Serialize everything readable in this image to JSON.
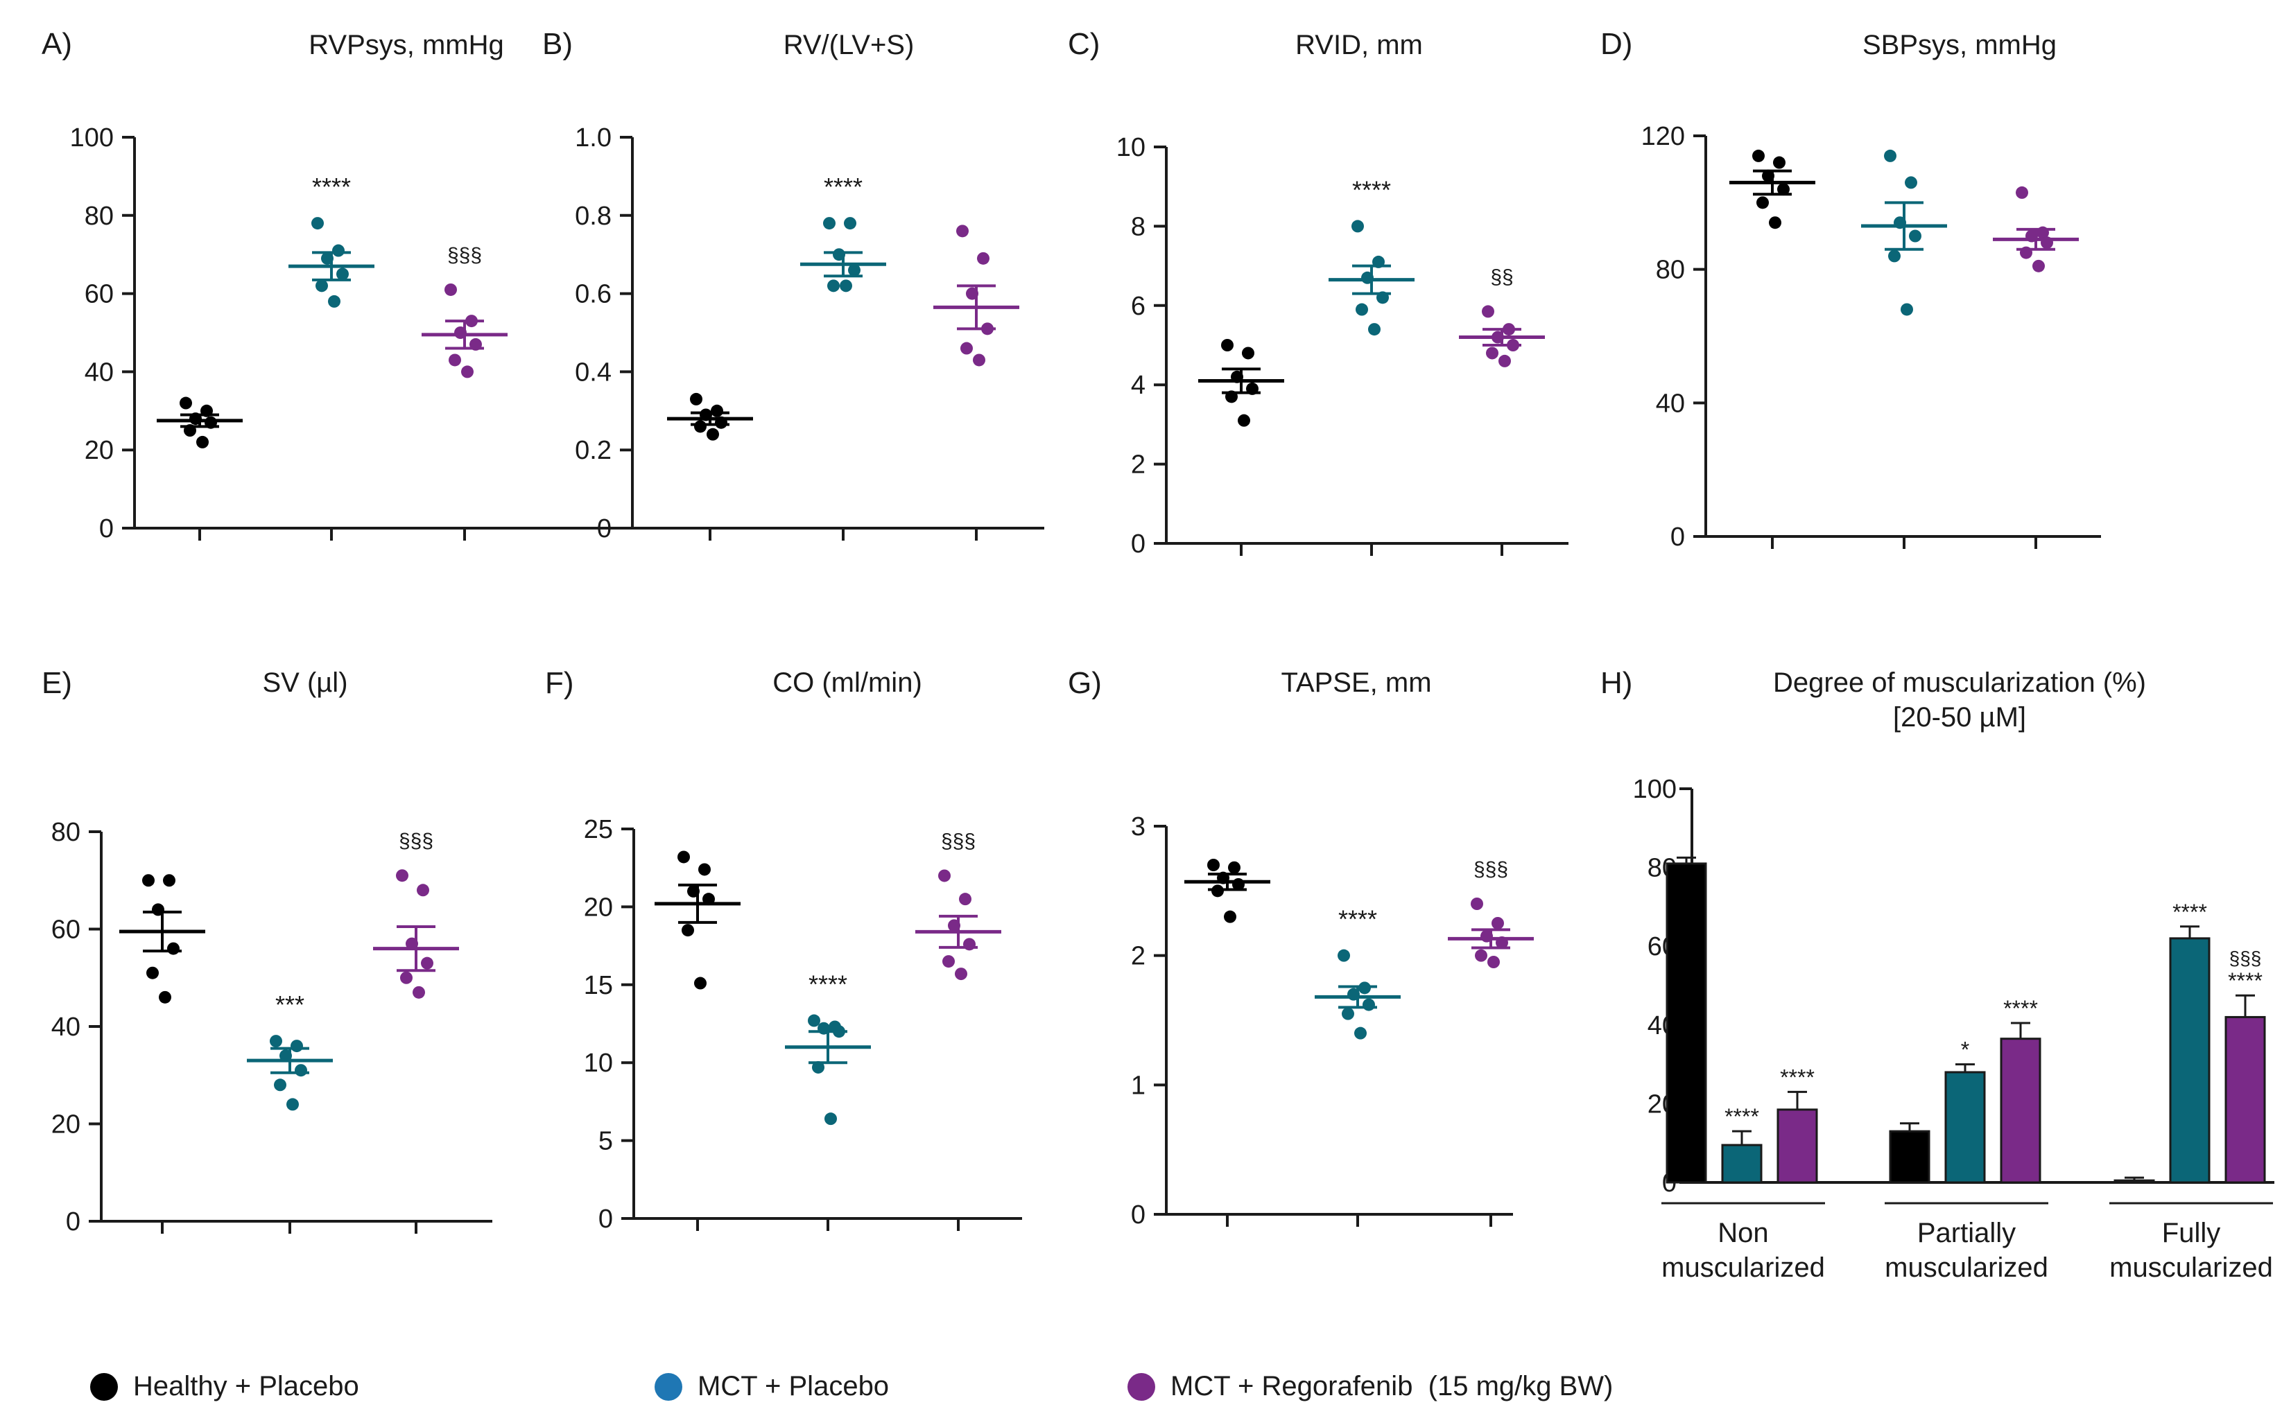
{
  "colors": {
    "healthy": "#000000",
    "mct_placebo": "#0b6677",
    "mct_rego": "#7a2a88"
  },
  "legend": [
    {
      "label": "Healthy + Placebo",
      "color": "#000000",
      "legend_dot": "#000000"
    },
    {
      "label": "MCT + Placebo",
      "color": "#0b6677",
      "legend_dot": "#1f77b4"
    },
    {
      "label": "MCT + Regorafenib  (15 mg/kg BW)",
      "color": "#7a2a88",
      "legend_dot": "#7a2a88"
    }
  ],
  "chart_data": [
    {
      "id": "A",
      "panel_label": "A)",
      "title": "RVPsys, mmHg",
      "type": "scatter",
      "ylim": [
        0,
        100
      ],
      "yticks": [
        0,
        20,
        40,
        60,
        80,
        100
      ],
      "tick_labels": [
        "0",
        "20",
        "40",
        "60",
        "80",
        "100"
      ],
      "groups": [
        {
          "name": "Healthy + Placebo",
          "mean": 27.5,
          "sem": 1.5,
          "points": [
            32,
            30,
            28,
            27,
            25,
            22
          ],
          "annotation": ""
        },
        {
          "name": "MCT + Placebo",
          "mean": 67,
          "sem": 3.5,
          "points": [
            78,
            71,
            69,
            65,
            62,
            58
          ],
          "annotation": "****"
        },
        {
          "name": "MCT + Regorafenib",
          "mean": 49.5,
          "sem": 3.5,
          "points": [
            61,
            53,
            50,
            47,
            43,
            40
          ],
          "annotation": "§§§"
        }
      ]
    },
    {
      "id": "B",
      "panel_label": "B)",
      "title": "RV/(LV+S)",
      "type": "scatter",
      "ylim": [
        0,
        1.0
      ],
      "yticks": [
        0,
        0.2,
        0.4,
        0.6,
        0.8,
        1.0
      ],
      "tick_labels": [
        "0",
        "0.2",
        "0.4",
        "0.6",
        "0.8",
        "1.0"
      ],
      "groups": [
        {
          "name": "Healthy + Placebo",
          "mean": 0.28,
          "sem": 0.015,
          "points": [
            0.33,
            0.3,
            0.29,
            0.27,
            0.26,
            0.24
          ],
          "annotation": ""
        },
        {
          "name": "MCT + Placebo",
          "mean": 0.675,
          "sem": 0.03,
          "points": [
            0.78,
            0.78,
            0.7,
            0.66,
            0.62,
            0.62
          ],
          "annotation": "****"
        },
        {
          "name": "MCT + Regorafenib",
          "mean": 0.565,
          "sem": 0.055,
          "points": [
            0.76,
            0.69,
            0.6,
            0.51,
            0.46,
            0.43
          ],
          "annotation": ""
        }
      ]
    },
    {
      "id": "C",
      "panel_label": "C)",
      "title": "RVID, mm",
      "type": "scatter",
      "ylim": [
        0,
        10
      ],
      "yticks": [
        0,
        2,
        4,
        6,
        8,
        10
      ],
      "tick_labels": [
        "0",
        "2",
        "4",
        "6",
        "8",
        "10"
      ],
      "groups": [
        {
          "name": "Healthy + Placebo",
          "mean": 4.1,
          "sem": 0.3,
          "points": [
            5.0,
            4.8,
            4.2,
            3.9,
            3.7,
            3.1
          ],
          "annotation": ""
        },
        {
          "name": "MCT + Placebo",
          "mean": 6.65,
          "sem": 0.35,
          "points": [
            8.0,
            7.1,
            6.7,
            6.2,
            5.9,
            5.4
          ],
          "annotation": "****"
        },
        {
          "name": "MCT + Regorafenib",
          "mean": 5.2,
          "sem": 0.2,
          "points": [
            5.85,
            5.4,
            5.2,
            5.0,
            4.8,
            4.6
          ],
          "annotation": "§§"
        }
      ]
    },
    {
      "id": "D",
      "panel_label": "D)",
      "title": "SBPsys, mmHg",
      "type": "scatter",
      "ylim": [
        0,
        120
      ],
      "yticks": [
        0,
        40,
        80,
        120
      ],
      "tick_labels": [
        "0",
        "40",
        "80",
        "120"
      ],
      "groups": [
        {
          "name": "Healthy + Placebo",
          "mean": 106,
          "sem": 3.5,
          "points": [
            114,
            112,
            108,
            104,
            100,
            94
          ],
          "annotation": ""
        },
        {
          "name": "MCT + Placebo",
          "mean": 93,
          "sem": 7,
          "points": [
            114,
            106,
            94,
            90,
            84,
            68
          ],
          "annotation": ""
        },
        {
          "name": "MCT + Regorafenib",
          "mean": 89,
          "sem": 3,
          "points": [
            103,
            91,
            90,
            88,
            85,
            81
          ],
          "annotation": ""
        }
      ]
    },
    {
      "id": "E",
      "panel_label": "E)",
      "title": "SV (µl)",
      "type": "scatter",
      "ylim": [
        0,
        80
      ],
      "yticks": [
        0,
        20,
        40,
        60,
        80
      ],
      "tick_labels": [
        "0",
        "20",
        "40",
        "60",
        "80"
      ],
      "groups": [
        {
          "name": "Healthy + Placebo",
          "mean": 59.5,
          "sem": 4,
          "points": [
            70,
            70,
            64,
            56,
            51,
            46
          ],
          "annotation": ""
        },
        {
          "name": "MCT + Placebo",
          "mean": 33,
          "sem": 2.5,
          "points": [
            37,
            36,
            34,
            31,
            28,
            24
          ],
          "annotation": "***"
        },
        {
          "name": "MCT + Regorafenib",
          "mean": 56,
          "sem": 4.5,
          "points": [
            71,
            68,
            57,
            53,
            50,
            47
          ],
          "annotation": "§§§"
        }
      ]
    },
    {
      "id": "F",
      "panel_label": "F)",
      "title": "CO (ml/min)",
      "type": "scatter",
      "ylim": [
        0,
        25
      ],
      "yticks": [
        0,
        5,
        10,
        15,
        20,
        25
      ],
      "tick_labels": [
        "0",
        "5",
        "10",
        "15",
        "20",
        "25"
      ],
      "groups": [
        {
          "name": "Healthy + Placebo",
          "mean": 20.2,
          "sem": 1.2,
          "points": [
            23.2,
            22.4,
            21.0,
            20.5,
            18.5,
            15.1
          ],
          "annotation": ""
        },
        {
          "name": "MCT + Placebo",
          "mean": 11,
          "sem": 1.0,
          "points": [
            12.7,
            12.3,
            12.2,
            12.0,
            9.7,
            6.4
          ],
          "annotation": "****"
        },
        {
          "name": "MCT + Regorafenib",
          "mean": 18.4,
          "sem": 1.0,
          "points": [
            22.0,
            20.5,
            18.8,
            17.6,
            16.5,
            15.7
          ],
          "annotation": "§§§"
        }
      ]
    },
    {
      "id": "G",
      "panel_label": "G)",
      "title": "TAPSE, mm",
      "type": "scatter",
      "ylim": [
        0,
        3
      ],
      "yticks": [
        0,
        1,
        2,
        3
      ],
      "tick_labels": [
        "0",
        "1",
        "2",
        "3"
      ],
      "groups": [
        {
          "name": "Healthy + Placebo",
          "mean": 2.57,
          "sem": 0.06,
          "points": [
            2.7,
            2.68,
            2.6,
            2.55,
            2.5,
            2.3
          ],
          "annotation": ""
        },
        {
          "name": "MCT + Placebo",
          "mean": 1.68,
          "sem": 0.08,
          "points": [
            2.0,
            1.75,
            1.7,
            1.62,
            1.55,
            1.4
          ],
          "annotation": "****"
        },
        {
          "name": "MCT + Regorafenib",
          "mean": 2.13,
          "sem": 0.07,
          "points": [
            2.4,
            2.25,
            2.15,
            2.1,
            2.0,
            1.95
          ],
          "annotation": "§§§"
        }
      ]
    },
    {
      "id": "H",
      "panel_label": "H)",
      "title": "Degree of muscularization (%)",
      "subtitle": "[20-50 µM]",
      "type": "bar",
      "ylim": [
        0,
        100
      ],
      "yticks": [
        0,
        20,
        40,
        60,
        80,
        100
      ],
      "tick_labels": [
        "0",
        "20",
        "40",
        "60",
        "80",
        "100"
      ],
      "categories": [
        [
          "Non",
          "muscularized"
        ],
        [
          "Partially",
          "muscularized"
        ],
        [
          "Fully",
          "muscularized"
        ]
      ],
      "series": [
        {
          "name": "Healthy + Placebo",
          "values": [
            81,
            13,
            0.5
          ],
          "errors": [
            1.5,
            2,
            0.7
          ],
          "annotations": [
            "",
            "",
            ""
          ]
        },
        {
          "name": "MCT + Placebo",
          "values": [
            9.5,
            28,
            62
          ],
          "errors": [
            3.5,
            2,
            3
          ],
          "annotations": [
            "****",
            "*",
            "****"
          ]
        },
        {
          "name": "MCT + Regorafenib",
          "values": [
            18.5,
            36.5,
            42
          ],
          "errors": [
            4.5,
            4,
            5.5
          ],
          "annotations": [
            "****",
            "****",
            "§§§\n****"
          ]
        }
      ]
    }
  ]
}
